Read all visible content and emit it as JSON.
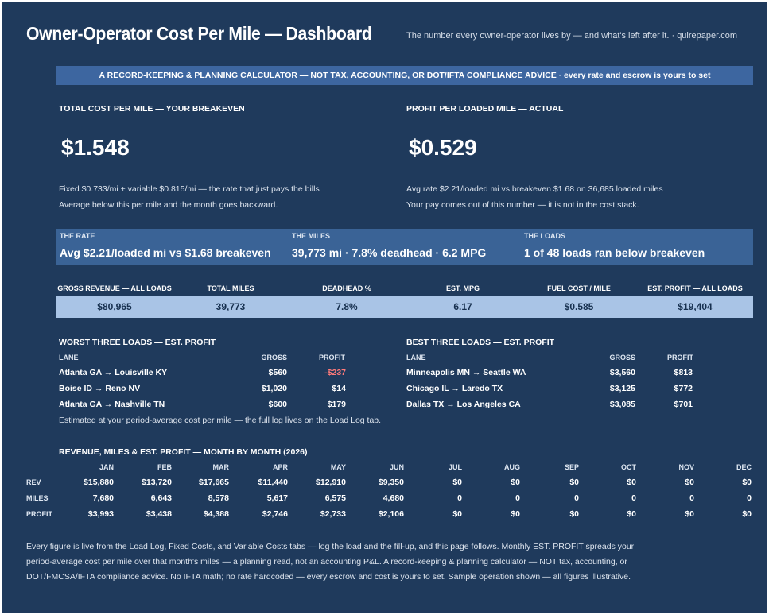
{
  "header": {
    "title": "Owner-Operator Cost Per Mile — Dashboard",
    "tagline": "The number every owner-operator lives by — and what's left after it.  ·  quirepaper.com"
  },
  "banner": "A RECORD-KEEPING & PLANNING CALCULATOR — NOT TAX, ACCOUNTING, OR DOT/IFTA COMPLIANCE ADVICE  ·  every rate and escrow is yours to set",
  "kpis": {
    "cost": {
      "label": "TOTAL COST PER MILE — YOUR BREAKEVEN",
      "value": "$1.548",
      "note1": "Fixed $0.733/mi + variable $0.815/mi — the rate that just pays the bills",
      "note2": "Average below this per mile and the month goes backward."
    },
    "profit": {
      "label": "PROFIT PER LOADED MILE — ACTUAL",
      "value": "$0.529",
      "note1": "Avg rate $2.21/loaded mi vs breakeven $1.68 on 36,685 loaded miles",
      "note2": "Your pay comes out of this number — it is not in the cost stack."
    }
  },
  "band": [
    {
      "label": "THE RATE",
      "value": "Avg $2.21/loaded mi vs $1.68 breakeven"
    },
    {
      "label": "THE MILES",
      "value": "39,773 mi · 7.8% deadhead · 6.2 MPG"
    },
    {
      "label": "THE LOADS",
      "value": "1 of 48 loads ran below breakeven"
    }
  ],
  "stats": [
    {
      "label": "GROSS REVENUE — ALL LOADS",
      "value": "$80,965"
    },
    {
      "label": "TOTAL MILES",
      "value": "39,773"
    },
    {
      "label": "DEADHEAD %",
      "value": "7.8%"
    },
    {
      "label": "EST. MPG",
      "value": "6.17"
    },
    {
      "label": "FUEL COST / MILE",
      "value": "$0.585"
    },
    {
      "label": "EST. PROFIT — ALL LOADS",
      "value": "$19,404"
    }
  ],
  "worst": {
    "title": "WORST THREE LOADS — EST. PROFIT",
    "cols": {
      "lane": "LANE",
      "gross": "GROSS",
      "profit": "PROFIT"
    },
    "rows": [
      {
        "lane": "Atlanta GA → Louisville KY",
        "gross": "$560",
        "profit": "-$237"
      },
      {
        "lane": "Boise ID → Reno NV",
        "gross": "$1,020",
        "profit": "$14"
      },
      {
        "lane": "Atlanta GA → Nashville TN",
        "gross": "$600",
        "profit": "$179"
      }
    ],
    "note": "Estimated at your period-average cost per mile — the full log lives on the Load Log tab."
  },
  "best": {
    "title": "BEST THREE LOADS — EST. PROFIT",
    "cols": {
      "lane": "LANE",
      "gross": "GROSS",
      "profit": "PROFIT"
    },
    "rows": [
      {
        "lane": "Minneapolis MN → Seattle WA",
        "gross": "$3,560",
        "profit": "$813"
      },
      {
        "lane": "Chicago IL → Laredo TX",
        "gross": "$3,125",
        "profit": "$772"
      },
      {
        "lane": "Dallas TX → Los Angeles CA",
        "gross": "$3,085",
        "profit": "$701"
      }
    ]
  },
  "monthly": {
    "title": "REVENUE, MILES & EST. PROFIT — MONTH BY MONTH (2026)",
    "months": [
      "JAN",
      "FEB",
      "MAR",
      "APR",
      "MAY",
      "JUN",
      "JUL",
      "AUG",
      "SEP",
      "OCT",
      "NOV",
      "DEC"
    ],
    "rows": [
      {
        "label": "REV",
        "values": [
          "$15,880",
          "$13,720",
          "$17,665",
          "$11,440",
          "$12,910",
          "$9,350",
          "$0",
          "$0",
          "$0",
          "$0",
          "$0",
          "$0"
        ]
      },
      {
        "label": "MILES",
        "values": [
          "7,680",
          "6,643",
          "8,578",
          "5,617",
          "6,575",
          "4,680",
          "0",
          "0",
          "0",
          "0",
          "0",
          "0"
        ]
      },
      {
        "label": "PROFIT",
        "values": [
          "$3,993",
          "$3,438",
          "$4,388",
          "$2,746",
          "$2,733",
          "$2,106",
          "$0",
          "$0",
          "$0",
          "$0",
          "$0",
          "$0"
        ]
      }
    ]
  },
  "footer": [
    "Every figure is live from the Load Log, Fixed Costs, and Variable Costs tabs — log the load and the fill-up, and this page follows. Monthly EST. PROFIT spreads your",
    "period-average cost per mile over that month's miles — a planning read, not an accounting P&L. A record-keeping & planning calculator — NOT tax, accounting, or",
    "DOT/FMCSA/IFTA compliance advice. No IFTA math; no rate hardcoded — every escrow and cost is yours to set. Sample operation shown — all figures illustrative."
  ]
}
